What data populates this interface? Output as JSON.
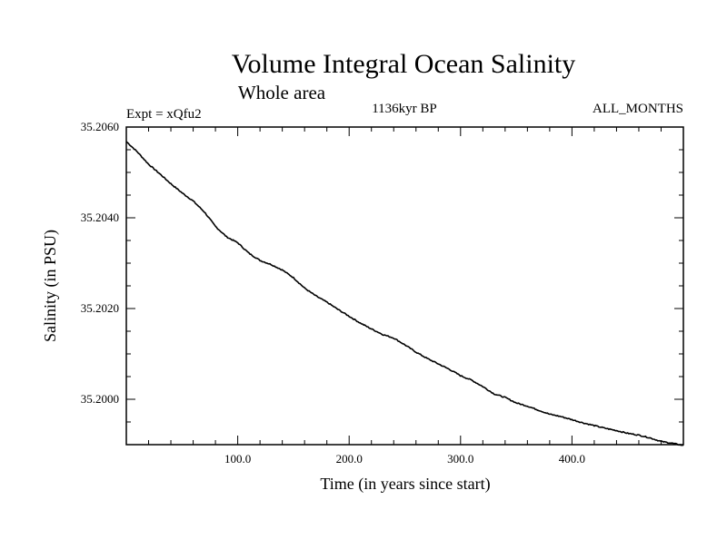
{
  "chart_data": {
    "type": "line",
    "title": "Volume Integral Ocean Salinity",
    "subtitle": "Whole area",
    "experiment_label": "Expt = xQfu2",
    "period_label": "1136kyr BP",
    "season_label": "ALL_MONTHS",
    "xlabel": "Time (in years since start)",
    "ylabel": "Salinity (in PSU)",
    "xlim": [
      0,
      500
    ],
    "ylim": [
      35.199,
      35.206
    ],
    "xticks": [
      100,
      200,
      300,
      400
    ],
    "xtick_labels": [
      "100.0",
      "200.0",
      "300.0",
      "400.0"
    ],
    "yticks": [
      35.2,
      35.202,
      35.204,
      35.206
    ],
    "ytick_labels": [
      "35.2000",
      "35.2020",
      "35.2040",
      "35.2060"
    ],
    "grid": false,
    "series": [
      {
        "name": "Volume Integral Ocean Salinity",
        "color": "#000000",
        "x": [
          0,
          10,
          20,
          30,
          40,
          50,
          60,
          70,
          80,
          90,
          100,
          110,
          120,
          130,
          140,
          150,
          160,
          170,
          180,
          190,
          200,
          210,
          220,
          230,
          240,
          250,
          260,
          270,
          280,
          290,
          300,
          310,
          320,
          330,
          340,
          350,
          360,
          370,
          380,
          390,
          400,
          410,
          420,
          430,
          440,
          450,
          460,
          470,
          480,
          490,
          500
        ],
        "y": [
          35.20568,
          35.20545,
          35.20518,
          35.20497,
          35.20475,
          35.20455,
          35.20437,
          35.20413,
          35.20381,
          35.20358,
          35.20345,
          35.20322,
          35.20306,
          35.20297,
          35.20285,
          35.20268,
          35.20245,
          35.20228,
          35.20214,
          35.20198,
          35.20183,
          35.20168,
          35.20155,
          35.20143,
          35.20135,
          35.2012,
          35.20104,
          35.2009,
          35.20078,
          35.20066,
          35.20052,
          35.20042,
          35.20028,
          35.20012,
          35.20004,
          35.19992,
          35.19985,
          35.19976,
          35.19967,
          35.19962,
          35.19955,
          35.19948,
          35.19942,
          35.19936,
          35.19931,
          35.19925,
          35.19921,
          35.19915,
          35.19907,
          35.19903,
          35.19898
        ]
      }
    ]
  }
}
